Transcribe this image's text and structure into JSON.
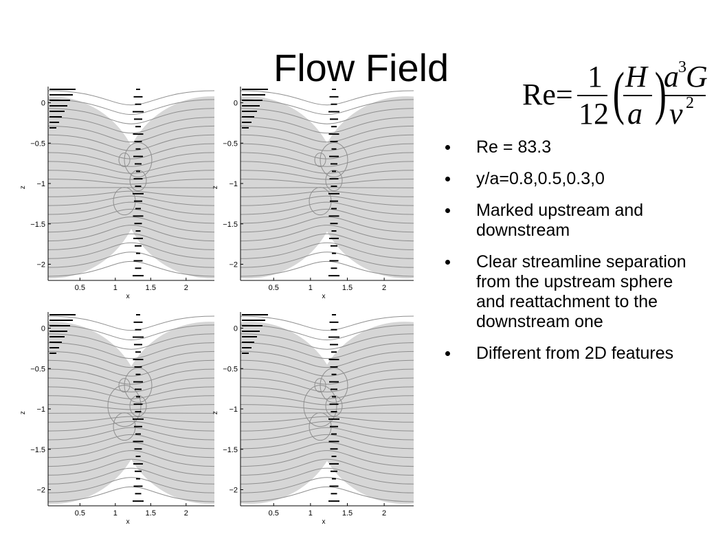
{
  "slide": {
    "title": "Flow Field",
    "bullets": [
      "Re = 83.3",
      "y/a=0.8,0.5,0.3,0",
      "Marked upstream and downstream",
      "Clear streamline separation from the upstream sphere and reattachment to the downstream one",
      "Different from 2D features"
    ]
  },
  "formula": {
    "lhs": "Re=",
    "num": "1",
    "den": "12",
    "h": "H",
    "a": "a",
    "a3g": "a",
    "exp3": "3",
    "g": "G",
    "nu": "v",
    "exp2": "2"
  },
  "plots": {
    "x_ticks": [
      "0.5",
      "1",
      "1.5",
      "2"
    ],
    "z_ticks": [
      "0",
      "−0.5",
      "−1",
      "−1.5",
      "−2"
    ],
    "xlabel": "x",
    "zlabel": "z",
    "colors": {
      "sphere": "#d6d6d6",
      "streamline": "#8e8e8e",
      "marker": "#000000"
    }
  }
}
